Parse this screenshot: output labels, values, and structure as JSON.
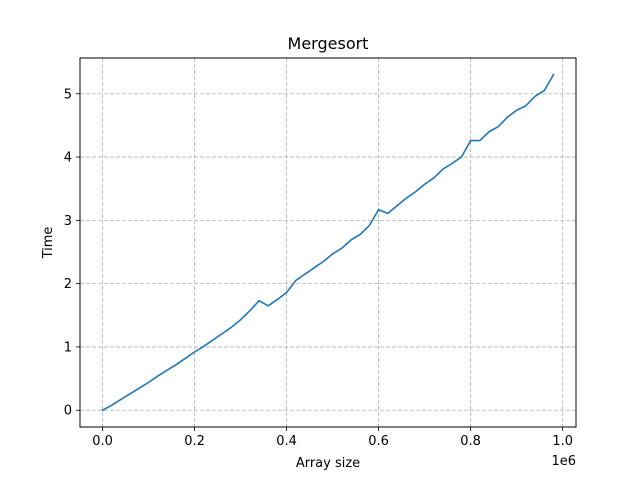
{
  "chart_data": {
    "type": "line",
    "title": "Mergesort",
    "xlabel": "Array size",
    "ylabel": "Time",
    "x_offset_label": "1e6",
    "xlim": [
      -0.049,
      1.029
    ],
    "ylim": [
      -0.265,
      5.565
    ],
    "xticks": [
      0.0,
      0.2,
      0.4,
      0.6,
      0.8,
      1.0
    ],
    "xtick_labels": [
      "0.0",
      "0.2",
      "0.4",
      "0.6",
      "0.8",
      "1.0"
    ],
    "yticks": [
      0,
      1,
      2,
      3,
      4,
      5
    ],
    "ytick_labels": [
      "0",
      "1",
      "2",
      "3",
      "4",
      "5"
    ],
    "grid": true,
    "line_color": "#1f77b4",
    "series": [
      {
        "x": [
          0.0,
          0.02,
          0.04,
          0.06,
          0.08,
          0.1,
          0.12,
          0.14,
          0.16,
          0.18,
          0.2,
          0.22,
          0.24,
          0.26,
          0.28,
          0.3,
          0.32,
          0.34,
          0.36,
          0.38,
          0.4,
          0.42,
          0.44,
          0.46,
          0.48,
          0.5,
          0.52,
          0.54,
          0.56,
          0.58,
          0.6,
          0.62,
          0.64,
          0.66,
          0.68,
          0.7,
          0.72,
          0.74,
          0.76,
          0.78,
          0.8,
          0.82,
          0.84,
          0.86,
          0.88,
          0.9,
          0.92,
          0.94,
          0.96,
          0.98
        ],
        "y": [
          0.0,
          0.08,
          0.17,
          0.26,
          0.35,
          0.44,
          0.54,
          0.63,
          0.72,
          0.82,
          0.92,
          1.01,
          1.11,
          1.21,
          1.31,
          1.43,
          1.57,
          1.73,
          1.65,
          1.75,
          1.86,
          2.05,
          2.15,
          2.25,
          2.35,
          2.47,
          2.56,
          2.69,
          2.78,
          2.92,
          3.17,
          3.11,
          3.23,
          3.35,
          3.45,
          3.57,
          3.67,
          3.81,
          3.9,
          4.0,
          4.26,
          4.26,
          4.4,
          4.48,
          4.63,
          4.74,
          4.81,
          4.96,
          5.05,
          5.3
        ]
      }
    ]
  }
}
